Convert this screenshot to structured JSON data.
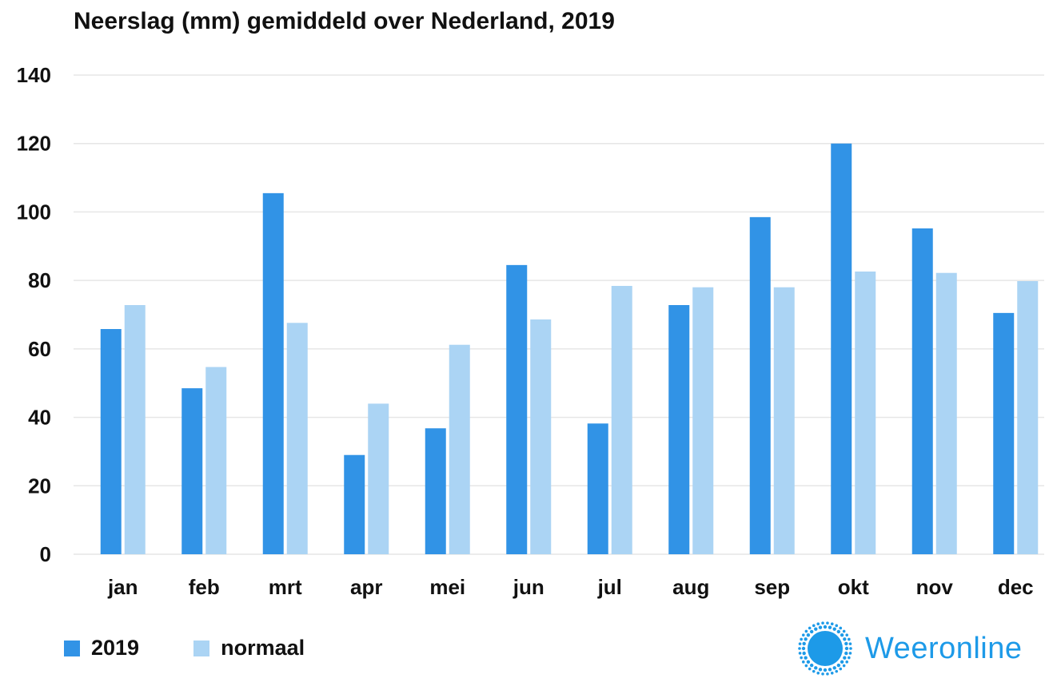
{
  "title": "Neerslag (mm) gemiddeld over Nederland, 2019",
  "colors": {
    "series_2019": "#3193e6",
    "series_normaal": "#abd4f4",
    "grid": "#e6e6e6",
    "logo": "#1d9ae8"
  },
  "logo": {
    "text": "Weeronline",
    "icon": "sun-icon"
  },
  "chart_data": {
    "type": "bar",
    "categories": [
      "jan",
      "feb",
      "mrt",
      "apr",
      "mei",
      "jun",
      "jul",
      "aug",
      "sep",
      "okt",
      "nov",
      "dec"
    ],
    "series": [
      {
        "name": "2019",
        "values": [
          65.8,
          48.5,
          105.5,
          29.0,
          36.8,
          84.5,
          38.2,
          72.8,
          98.5,
          120.0,
          95.2,
          70.5
        ]
      },
      {
        "name": "normaal",
        "values": [
          72.8,
          54.7,
          67.6,
          44.0,
          61.2,
          68.6,
          78.4,
          78.0,
          78.0,
          82.6,
          82.2,
          79.8
        ]
      }
    ],
    "title": "Neerslag (mm) gemiddeld over Nederland, 2019",
    "xlabel": "",
    "ylabel": "",
    "ylim": [
      0,
      140
    ],
    "yticks": [
      0,
      20,
      40,
      60,
      80,
      100,
      120,
      140
    ],
    "grid": "horizontal",
    "legend": "bottom-left"
  }
}
